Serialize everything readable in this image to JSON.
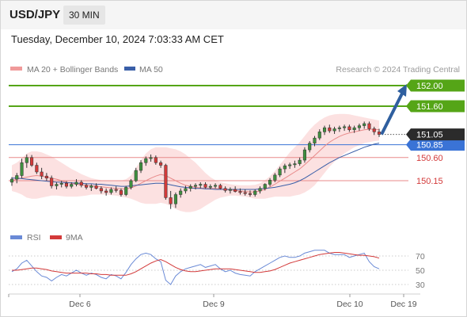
{
  "header": {
    "symbol": "USD/JPY",
    "interval": "30 MIN"
  },
  "timestamp": "Tuesday, December 10, 2024 7:03:33 AM CET",
  "legend": {
    "ma20_label": "MA 20 + Bollinger Bands",
    "ma50_label": "MA 50",
    "rsi_label": "RSI",
    "rsi_ma_label": "9MA"
  },
  "source": "Research © 2024 Trading Central",
  "colors": {
    "up_candle": "#3f8f3f",
    "down_candle": "#d33a3a",
    "ma20": "#e88a8a",
    "ma50": "#3a5fa8",
    "bollinger_fill": "#fcdcdc",
    "green_level": "#55a517",
    "blue_level": "#3a73d6",
    "red_level": "#e88a8a",
    "rsi": "#6a8ad6",
    "rsi_ma": "#d33a3a",
    "last_price_tag": "#2b2b2b",
    "arrow": "#2f5f9f"
  },
  "chart_data": {
    "type": "candlestick",
    "x_ticks": [
      "Dec 6",
      "Dec 9",
      "Dec 10",
      "Dec 19"
    ],
    "y_range": [
      149.6,
      152.15
    ],
    "last_price": 151.05,
    "levels": [
      {
        "value": 152.0,
        "label": "152.00",
        "kind": "resistance"
      },
      {
        "value": 151.6,
        "label": "151.60",
        "kind": "resistance"
      },
      {
        "value": 150.85,
        "label": "150.85",
        "kind": "pivot"
      },
      {
        "value": 150.6,
        "label": "150.60",
        "kind": "support"
      },
      {
        "value": 150.15,
        "label": "150.15",
        "kind": "support"
      }
    ],
    "projection": {
      "from": 151.05,
      "to": 152.0
    },
    "candles": [
      [
        150.12,
        150.22,
        150.05,
        150.18
      ],
      [
        150.18,
        150.3,
        150.1,
        150.25
      ],
      [
        150.25,
        150.58,
        150.2,
        150.5
      ],
      [
        150.5,
        150.66,
        150.4,
        150.6
      ],
      [
        150.6,
        150.65,
        150.42,
        150.45
      ],
      [
        150.45,
        150.5,
        150.28,
        150.32
      ],
      [
        150.32,
        150.4,
        150.18,
        150.24
      ],
      [
        150.24,
        150.3,
        150.15,
        150.2
      ],
      [
        150.2,
        150.25,
        150.0,
        150.05
      ],
      [
        150.05,
        150.12,
        149.98,
        150.08
      ],
      [
        150.08,
        150.15,
        150.02,
        150.1
      ],
      [
        150.1,
        150.14,
        150.0,
        150.04
      ],
      [
        150.04,
        150.12,
        150.0,
        150.08
      ],
      [
        150.08,
        150.18,
        150.04,
        150.12
      ],
      [
        150.12,
        150.16,
        150.02,
        150.06
      ],
      [
        150.06,
        150.1,
        149.98,
        150.02
      ],
      [
        150.02,
        150.08,
        149.95,
        150.05
      ],
      [
        150.05,
        150.1,
        149.98,
        150.0
      ],
      [
        150.0,
        150.04,
        149.9,
        149.95
      ],
      [
        149.95,
        150.0,
        149.86,
        149.92
      ],
      [
        149.92,
        150.02,
        149.88,
        149.98
      ],
      [
        149.98,
        150.04,
        149.92,
        149.96
      ],
      [
        149.96,
        150.0,
        149.84,
        149.88
      ],
      [
        149.88,
        150.05,
        149.85,
        150.02
      ],
      [
        150.02,
        150.18,
        149.98,
        150.15
      ],
      [
        150.15,
        150.4,
        150.12,
        150.35
      ],
      [
        150.35,
        150.55,
        150.3,
        150.5
      ],
      [
        150.5,
        150.62,
        150.44,
        150.58
      ],
      [
        150.58,
        150.66,
        150.52,
        150.6
      ],
      [
        150.6,
        150.64,
        150.46,
        150.5
      ],
      [
        150.5,
        150.54,
        150.4,
        150.45
      ],
      [
        150.45,
        150.48,
        149.78,
        149.82
      ],
      [
        149.82,
        149.95,
        149.6,
        149.7
      ],
      [
        149.7,
        149.92,
        149.62,
        149.88
      ],
      [
        149.88,
        150.0,
        149.82,
        149.95
      ],
      [
        149.95,
        150.05,
        149.9,
        150.0
      ],
      [
        150.0,
        150.08,
        149.94,
        150.04
      ],
      [
        150.04,
        150.1,
        149.98,
        150.06
      ],
      [
        150.06,
        150.12,
        150.0,
        150.08
      ],
      [
        150.08,
        150.12,
        150.0,
        150.02
      ],
      [
        150.02,
        150.08,
        149.98,
        150.04
      ],
      [
        150.04,
        150.1,
        150.0,
        150.06
      ],
      [
        150.06,
        150.09,
        149.98,
        150.0
      ],
      [
        150.0,
        150.04,
        149.92,
        149.96
      ],
      [
        149.96,
        150.02,
        149.9,
        149.98
      ],
      [
        149.98,
        150.04,
        149.92,
        149.94
      ],
      [
        149.94,
        150.0,
        149.88,
        149.92
      ],
      [
        149.92,
        149.98,
        149.86,
        149.9
      ],
      [
        149.9,
        149.96,
        149.84,
        149.88
      ],
      [
        149.88,
        149.98,
        149.84,
        149.95
      ],
      [
        149.95,
        150.04,
        149.9,
        150.0
      ],
      [
        150.0,
        150.1,
        149.96,
        150.08
      ],
      [
        150.08,
        150.2,
        150.04,
        150.16
      ],
      [
        150.16,
        150.3,
        150.12,
        150.26
      ],
      [
        150.26,
        150.42,
        150.22,
        150.38
      ],
      [
        150.38,
        150.48,
        150.3,
        150.44
      ],
      [
        150.44,
        150.5,
        150.38,
        150.46
      ],
      [
        150.46,
        150.54,
        150.4,
        150.48
      ],
      [
        150.48,
        150.6,
        150.44,
        150.55
      ],
      [
        150.55,
        150.8,
        150.5,
        150.75
      ],
      [
        150.75,
        150.92,
        150.7,
        150.88
      ],
      [
        150.88,
        151.02,
        150.82,
        150.98
      ],
      [
        150.98,
        151.15,
        150.94,
        151.1
      ],
      [
        151.1,
        151.22,
        151.04,
        151.18
      ],
      [
        151.18,
        151.24,
        151.08,
        151.12
      ],
      [
        151.12,
        151.2,
        151.06,
        151.16
      ],
      [
        151.16,
        151.22,
        151.1,
        151.18
      ],
      [
        151.18,
        151.24,
        151.12,
        151.2
      ],
      [
        151.2,
        151.24,
        151.1,
        151.14
      ],
      [
        151.14,
        151.22,
        151.08,
        151.18
      ],
      [
        151.18,
        151.26,
        151.12,
        151.22
      ],
      [
        151.22,
        151.3,
        151.16,
        151.26
      ],
      [
        151.26,
        151.3,
        151.12,
        151.16
      ],
      [
        151.16,
        151.2,
        151.04,
        151.1
      ],
      [
        151.1,
        151.16,
        151.0,
        151.05
      ]
    ],
    "ma20": [
      150.15,
      150.18,
      150.2,
      150.22,
      150.24,
      150.25,
      150.24,
      150.22,
      150.2,
      150.18,
      150.15,
      150.12,
      150.1,
      150.08,
      150.07,
      150.06,
      150.05,
      150.04,
      150.03,
      150.02,
      150.01,
      150.0,
      149.99,
      149.99,
      150.01,
      150.05,
      150.1,
      150.15,
      150.2,
      150.24,
      150.27,
      150.25,
      150.2,
      150.15,
      150.1,
      150.06,
      150.04,
      150.02,
      150.01,
      150.0,
      150.0,
      150.0,
      149.99,
      149.98,
      149.97,
      149.96,
      149.95,
      149.94,
      149.93,
      149.93,
      149.95,
      149.98,
      150.03,
      150.08,
      150.14,
      150.2,
      150.26,
      150.32,
      150.38,
      150.46,
      150.55,
      150.64,
      150.73,
      150.82,
      150.9,
      150.96,
      151.01,
      151.05,
      151.08,
      151.1,
      151.12,
      151.14,
      151.15,
      151.15,
      151.14
    ],
    "ma50": [
      150.2,
      150.2,
      150.19,
      150.18,
      150.17,
      150.16,
      150.15,
      150.14,
      150.13,
      150.12,
      150.12,
      150.11,
      150.11,
      150.1,
      150.1,
      150.09,
      150.09,
      150.08,
      150.08,
      150.07,
      150.06,
      150.05,
      150.04,
      150.04,
      150.05,
      150.06,
      150.07,
      150.08,
      150.09,
      150.1,
      150.1,
      150.09,
      150.07,
      150.05,
      150.03,
      150.02,
      150.01,
      150.0,
      150.0,
      149.99,
      149.99,
      149.98,
      149.98,
      149.98,
      149.98,
      149.98,
      149.98,
      149.98,
      149.98,
      149.98,
      149.99,
      150.0,
      150.01,
      150.02,
      150.04,
      150.06,
      150.08,
      150.11,
      150.15,
      150.2,
      150.26,
      150.32,
      150.38,
      150.44,
      150.5,
      150.55,
      150.6,
      150.64,
      150.68,
      150.72,
      150.76,
      150.8,
      150.83,
      150.86,
      150.88
    ],
    "bb_upper": [
      150.45,
      150.5,
      150.58,
      150.68,
      150.72,
      150.72,
      150.7,
      150.66,
      150.62,
      150.56,
      150.5,
      150.44,
      150.38,
      150.33,
      150.28,
      150.24,
      150.2,
      150.18,
      150.16,
      150.15,
      150.14,
      150.14,
      150.15,
      150.18,
      150.25,
      150.4,
      150.55,
      150.68,
      150.76,
      150.8,
      150.8,
      150.8,
      150.78,
      150.76,
      150.72,
      150.66,
      150.58,
      150.5,
      150.4,
      150.3,
      150.22,
      150.16,
      150.12,
      150.1,
      150.08,
      150.07,
      150.06,
      150.06,
      150.06,
      150.07,
      150.1,
      150.16,
      150.24,
      150.34,
      150.46,
      150.58,
      150.7,
      150.8,
      150.9,
      151.02,
      151.14,
      151.24,
      151.32,
      151.38,
      151.42,
      151.44,
      151.45,
      151.45,
      151.44,
      151.42,
      151.4,
      151.38,
      151.36,
      151.34,
      151.32
    ],
    "bb_lower": [
      149.95,
      149.92,
      149.88,
      149.82,
      149.8,
      149.8,
      149.82,
      149.84,
      149.86,
      149.86,
      149.85,
      149.84,
      149.84,
      149.84,
      149.85,
      149.86,
      149.88,
      149.88,
      149.88,
      149.88,
      149.87,
      149.86,
      149.84,
      149.82,
      149.8,
      149.76,
      149.72,
      149.7,
      149.7,
      149.7,
      149.72,
      149.7,
      149.66,
      149.6,
      149.56,
      149.54,
      149.54,
      149.56,
      149.6,
      149.66,
      149.72,
      149.78,
      149.82,
      149.84,
      149.86,
      149.86,
      149.85,
      149.84,
      149.82,
      149.8,
      149.8,
      149.8,
      149.82,
      149.84,
      149.84,
      149.84,
      149.84,
      149.86,
      149.88,
      149.92,
      149.98,
      150.06,
      150.18,
      150.3,
      150.42,
      150.52,
      150.6,
      150.68,
      150.74,
      150.8,
      150.84,
      150.88,
      150.9,
      150.92,
      150.93
    ],
    "rsi_panel": {
      "ticks": [
        70,
        50,
        30
      ],
      "rsi": [
        48,
        52,
        60,
        64,
        56,
        48,
        42,
        40,
        35,
        40,
        44,
        42,
        46,
        50,
        46,
        43,
        46,
        44,
        40,
        38,
        44,
        42,
        38,
        47,
        58,
        66,
        72,
        74,
        72,
        66,
        62,
        36,
        30,
        42,
        48,
        52,
        54,
        56,
        58,
        54,
        56,
        58,
        52,
        48,
        50,
        46,
        44,
        43,
        42,
        48,
        52,
        56,
        60,
        64,
        68,
        70,
        68,
        68,
        70,
        74,
        76,
        78,
        78,
        78,
        74,
        72,
        72,
        72,
        68,
        70,
        72,
        74,
        62,
        55,
        52
      ],
      "rsi_ma": [
        50,
        50,
        51,
        52,
        53,
        53,
        52,
        51,
        49,
        48,
        47,
        46,
        46,
        46,
        46,
        46,
        45,
        45,
        44,
        44,
        43,
        43,
        43,
        43,
        45,
        48,
        52,
        56,
        60,
        63,
        65,
        62,
        58,
        54,
        51,
        49,
        48,
        48,
        49,
        50,
        51,
        52,
        52,
        52,
        52,
        51,
        50,
        49,
        48,
        47,
        47,
        48,
        49,
        51,
        54,
        57,
        60,
        62,
        64,
        66,
        68,
        70,
        72,
        73,
        74,
        75,
        75,
        74,
        73,
        72,
        71,
        71,
        70,
        69,
        67
      ]
    }
  }
}
